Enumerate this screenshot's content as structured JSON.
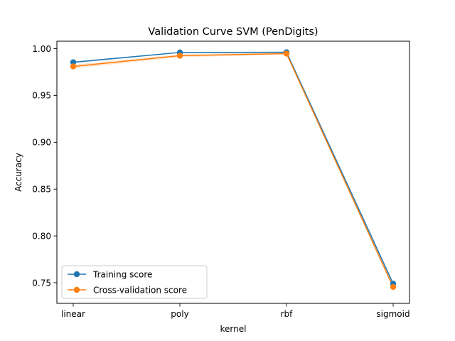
{
  "chart_data": {
    "type": "line",
    "title": "Validation Curve SVM (PenDigits)",
    "xlabel": "kernel",
    "ylabel": "Accuracy",
    "categories": [
      "linear",
      "poly",
      "rbf",
      "sigmoid"
    ],
    "ylim": [
      0.728,
      1.008
    ],
    "yticks": [
      0.75,
      0.8,
      0.85,
      0.9,
      0.95,
      1.0
    ],
    "ytick_labels": [
      "0.75",
      "0.80",
      "0.85",
      "0.90",
      "0.95",
      "1.00"
    ],
    "grid": false,
    "legend_position": "lower-left",
    "series": [
      {
        "name": "Training score",
        "color": "#1f77b4",
        "values": [
          0.9855,
          0.996,
          0.9962,
          0.749
        ],
        "band": [
          0.001,
          0.0006,
          0.0006,
          0.0015
        ]
      },
      {
        "name": "Cross-validation score",
        "color": "#ff7f0e",
        "values": [
          0.981,
          0.9925,
          0.9948,
          0.7455
        ],
        "band": [
          0.002,
          0.0015,
          0.0012,
          0.002
        ]
      }
    ]
  }
}
